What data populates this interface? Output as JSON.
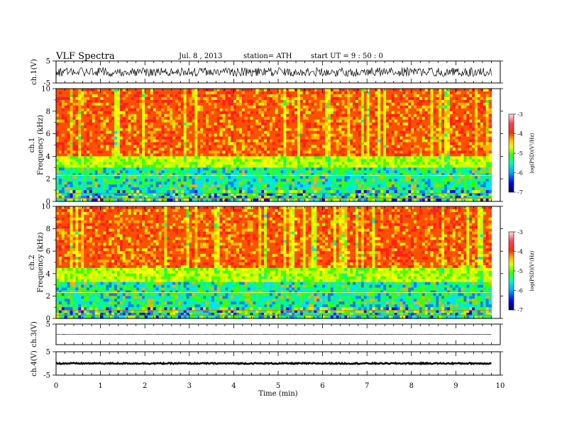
{
  "header": {
    "title": "VLF  Spectra",
    "date": "Jul.  8  , 2013",
    "station": "station= ATH",
    "start_time": "start  UT  =   9  : 50 : 0"
  },
  "chart_data": {
    "type": "heatmap",
    "time_axis": {
      "label": "Time  (min)",
      "range": [
        0,
        10
      ],
      "ticks": [
        "0",
        "1",
        "2",
        "3",
        "4",
        "5",
        "6",
        "7",
        "8",
        "9",
        "10"
      ],
      "data_end_min": 9.8
    },
    "panels": [
      {
        "id": "ch1-waveform",
        "kind": "waveform",
        "ylabel": "ch.1(V)",
        "ylim": [
          -5,
          5
        ],
        "yticks": [
          "5",
          "-5"
        ],
        "amplitude_V": 2.0
      },
      {
        "id": "ch1-spectrogram",
        "kind": "spectrogram",
        "ylabel_channel": "ch.1",
        "ylabel": "Frequency  (kHz)",
        "ylim": [
          0,
          10
        ],
        "yticks": [
          "0",
          "2",
          "4",
          "6",
          "8",
          "10"
        ],
        "colorbar": {
          "label": "log(PSD)(V²/Hz)",
          "ticks": [
            "-3",
            "-4",
            "-5",
            "-6",
            "-7"
          ],
          "range": [
            -7,
            -3
          ]
        },
        "noise_floor_kHz": 3.5
      },
      {
        "id": "ch2-spectrogram",
        "kind": "spectrogram",
        "ylabel_channel": "ch.2",
        "ylabel": "Frequency  (kHz)",
        "ylim": [
          0,
          10
        ],
        "yticks": [
          "0",
          "2",
          "4",
          "6",
          "8",
          "10"
        ],
        "colorbar": {
          "label": "log(PSD)(V²/Hz)",
          "ticks": [
            "-3",
            "-4",
            "-5",
            "-6",
            "-7"
          ],
          "range": [
            -7,
            -3
          ]
        },
        "noise_floor_kHz": 3.8
      },
      {
        "id": "ch3-waveform",
        "kind": "waveform",
        "ylabel": "ch.3(V)",
        "ylim": [
          -5,
          5
        ],
        "yticks": [
          "5"
        ],
        "offset_V": 0.0,
        "amplitude_V": 0.05
      },
      {
        "id": "ch4-waveform",
        "kind": "waveform",
        "ylabel": "ch.4(V)",
        "ylim": [
          -5,
          5
        ],
        "yticks": [
          "5",
          "-5"
        ],
        "offset_V": 0.0,
        "amplitude_V": 0.25
      }
    ]
  },
  "colors": {
    "psd_scale": [
      "#000060",
      "#0000ff",
      "#0080ff",
      "#00e0ff",
      "#00ff80",
      "#40ff00",
      "#c0ff00",
      "#ffff00",
      "#ffb000",
      "#ff5000",
      "#ff2020",
      "#ffffff"
    ]
  }
}
